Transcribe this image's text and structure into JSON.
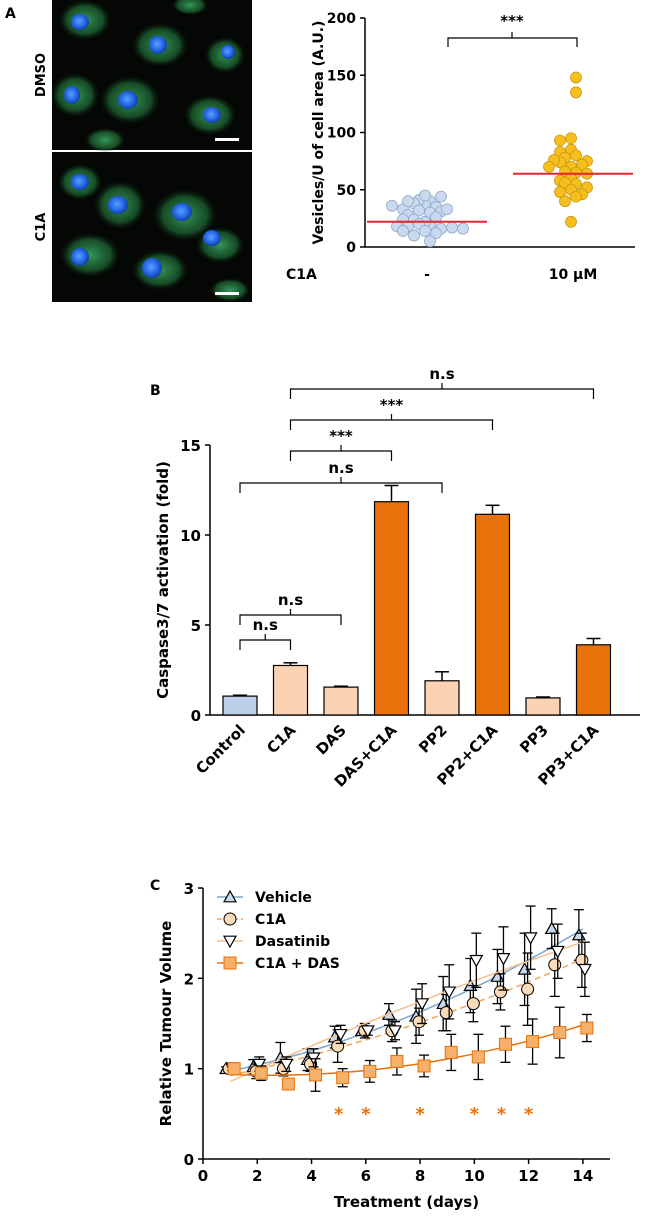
{
  "panels": {
    "A": {
      "letter": "A",
      "images": [
        {
          "label": "DMSO"
        },
        {
          "label": "C1A"
        }
      ],
      "chart_data": {
        "type": "scatter",
        "title": "",
        "ylabel": "Vesicles/U of cell area (A.U.)",
        "xlabel_prefix": "C1A",
        "categories": [
          "-",
          "10 µM"
        ],
        "ylim": [
          0,
          200
        ],
        "yticks": [
          0,
          50,
          100,
          150,
          200
        ],
        "means": [
          22,
          64
        ],
        "significance": "***",
        "colors": {
          "group1_fill": "#c9d9ee",
          "group1_edge": "#8fa8c9",
          "group2_fill": "#f6bf1f",
          "group2_edge": "#c99a10",
          "mean_line": "#e8232a"
        },
        "series": [
          {
            "values": [
              40,
              37,
              41,
              38,
              35,
              45,
              44,
              33,
              30,
              32,
              31,
              33,
              36,
              40,
              20,
              22,
              28,
              24,
              26,
              20,
              24,
              16,
              18,
              14,
              17,
              18,
              10,
              12,
              5,
              16,
              14
            ]
          },
          {
            "values": [
              148,
              135,
              95,
              93,
              85,
              80,
              83,
              78,
              75,
              70,
              74,
              76,
              72,
              70,
              65,
              66,
              64,
              60,
              55,
              58,
              56,
              50,
              52,
              48,
              46,
              44,
              40,
              22
            ]
          }
        ]
      }
    },
    "B": {
      "letter": "B",
      "chart_data": {
        "type": "bar",
        "title": "",
        "xlabel": "",
        "ylabel": "Caspase3/7 activation (fold)",
        "categories": [
          "Control",
          "C1A",
          "DAS",
          "DAS+C1A",
          "PP2",
          "PP2+C1A",
          "PP3",
          "PP3+C1A"
        ],
        "values": [
          1.05,
          2.75,
          1.55,
          11.85,
          1.9,
          11.15,
          0.95,
          3.9
        ],
        "errors": [
          0.05,
          0.15,
          0.05,
          0.9,
          0.5,
          0.5,
          0.05,
          0.35
        ],
        "ylim": [
          0,
          15
        ],
        "yticks": [
          0,
          5,
          10,
          15
        ],
        "bar_colors": [
          "#bcd0ea",
          "#fbd2b3",
          "#fbd2b3",
          "#e8710a",
          "#fbd2b3",
          "#e8710a",
          "#fbd2b3",
          "#e8710a"
        ],
        "comparisons": [
          {
            "from": 0,
            "to": 1,
            "label": "n.s"
          },
          {
            "from": 0,
            "to": 2,
            "label": "n.s"
          },
          {
            "from": 0,
            "to": 4,
            "label": "n.s"
          },
          {
            "from": 1,
            "to": 3,
            "label": "***"
          },
          {
            "from": 1,
            "to": 5,
            "label": "***"
          },
          {
            "from": 1,
            "to": 7,
            "label": "n.s"
          }
        ]
      }
    },
    "C": {
      "letter": "C",
      "chart_data": {
        "type": "line",
        "title": "",
        "xlabel": "Treatment (days)",
        "ylabel": "Relative Tumour Volume",
        "xlim": [
          0,
          15
        ],
        "ylim": [
          0,
          3
        ],
        "xticks": [
          0,
          2,
          4,
          6,
          8,
          10,
          12,
          14
        ],
        "yticks": [
          0,
          1,
          2,
          3
        ],
        "legend_position": "top-left",
        "significance_marker": "*",
        "significant_days": [
          5,
          6,
          8,
          10,
          11,
          12
        ],
        "series": [
          {
            "name": "Vehicle",
            "marker": "triangle-up",
            "color": "#7fa6cc",
            "fill": "#c9d9ee",
            "x": [
              1,
              2,
              3,
              4,
              5,
              6,
              7,
              8,
              9,
              10,
              11,
              12,
              13,
              14
            ],
            "y": [
              1.0,
              1.02,
              1.12,
              1.1,
              1.35,
              1.42,
              1.6,
              1.58,
              1.72,
              1.92,
              2.02,
              2.1,
              2.55,
              2.48
            ],
            "err": [
              0.02,
              0.08,
              0.17,
              0.12,
              0.12,
              0.05,
              0.12,
              0.3,
              0.3,
              0.3,
              0.3,
              0.4,
              0.22,
              0.28
            ]
          },
          {
            "name": "C1A",
            "marker": "circle",
            "color": "#f2a659",
            "fill": "#fcdcb8",
            "x": [
              1,
              2,
              3,
              4,
              5,
              6,
              7,
              8,
              9,
              10,
              11,
              12,
              13,
              14
            ],
            "y": [
              1.0,
              0.97,
              1.0,
              1.05,
              1.25,
              1.42,
              1.42,
              1.52,
              1.62,
              1.72,
              1.85,
              1.88,
              2.15,
              2.2
            ],
            "err": [
              0.02,
              0.08,
              0.08,
              0.08,
              0.18,
              0.08,
              0.12,
              0.15,
              0.2,
              0.2,
              0.2,
              0.4,
              0.35,
              0.3
            ]
          },
          {
            "name": "Dasatinib",
            "marker": "triangle-down",
            "color": "#f6bf8f",
            "fill": "#ffffff",
            "x": [
              1,
              2,
              3,
              4,
              5,
              6,
              7,
              8,
              9,
              10,
              11,
              12,
              13,
              14
            ],
            "y": [
              1.0,
              1.05,
              1.05,
              1.12,
              1.38,
              1.42,
              1.42,
              1.72,
              1.85,
              2.2,
              2.22,
              2.45,
              2.3,
              2.1
            ],
            "err": [
              0.02,
              0.08,
              0.08,
              0.1,
              0.1,
              0.05,
              0.1,
              0.22,
              0.3,
              0.3,
              0.35,
              0.35,
              0.3,
              0.3
            ]
          },
          {
            "name": "C1A + DAS",
            "marker": "square",
            "color": "#e8710a",
            "fill": "#f6b06a",
            "x": [
              1,
              2,
              3,
              4,
              5,
              6,
              7,
              8,
              9,
              10,
              11,
              12,
              13,
              14
            ],
            "y": [
              1.0,
              0.95,
              0.83,
              0.93,
              0.9,
              0.97,
              1.08,
              1.03,
              1.18,
              1.13,
              1.27,
              1.3,
              1.4,
              1.45
            ],
            "err": [
              0.02,
              0.08,
              0.05,
              0.18,
              0.1,
              0.12,
              0.15,
              0.12,
              0.2,
              0.25,
              0.2,
              0.25,
              0.28,
              0.15
            ]
          }
        ]
      }
    }
  }
}
